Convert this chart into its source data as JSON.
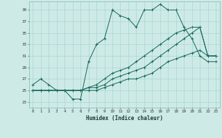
{
  "xlabel": "Humidex (Indice chaleur)",
  "bg_color": "#ceeae7",
  "grid_color": "#a8d5d1",
  "line_color": "#1a6b5e",
  "xlim": [
    -0.5,
    23.5
  ],
  "ylim": [
    22.0,
    40.5
  ],
  "yticks": [
    23,
    25,
    27,
    29,
    31,
    33,
    35,
    37,
    39
  ],
  "xticks": [
    0,
    1,
    2,
    3,
    4,
    5,
    6,
    7,
    8,
    9,
    10,
    11,
    12,
    13,
    14,
    15,
    16,
    17,
    18,
    19,
    20,
    21,
    22,
    23
  ],
  "series1": [
    26,
    27,
    26,
    25,
    25,
    23.5,
    23.5,
    30,
    33,
    34,
    39,
    38,
    37.5,
    36,
    39,
    39,
    40,
    39,
    39,
    36,
    34,
    31,
    30,
    30
  ],
  "series2": [
    25,
    25,
    25,
    25,
    25,
    25,
    25,
    25.5,
    26,
    27,
    28,
    28.5,
    29,
    30,
    31,
    32,
    33,
    34,
    35,
    35.5,
    36,
    36,
    31,
    31
  ],
  "series3": [
    25,
    25,
    25,
    25,
    25,
    25,
    25,
    25.5,
    25.5,
    26,
    27,
    27.5,
    28,
    28.5,
    29,
    30,
    31,
    32,
    33,
    34,
    35,
    36,
    31,
    31
  ],
  "series4": [
    25,
    25,
    25,
    25,
    25,
    25,
    25,
    25,
    25,
    25.5,
    26,
    26.5,
    27,
    27,
    27.5,
    28,
    29,
    30,
    30.5,
    31,
    31.5,
    32,
    31,
    31
  ]
}
